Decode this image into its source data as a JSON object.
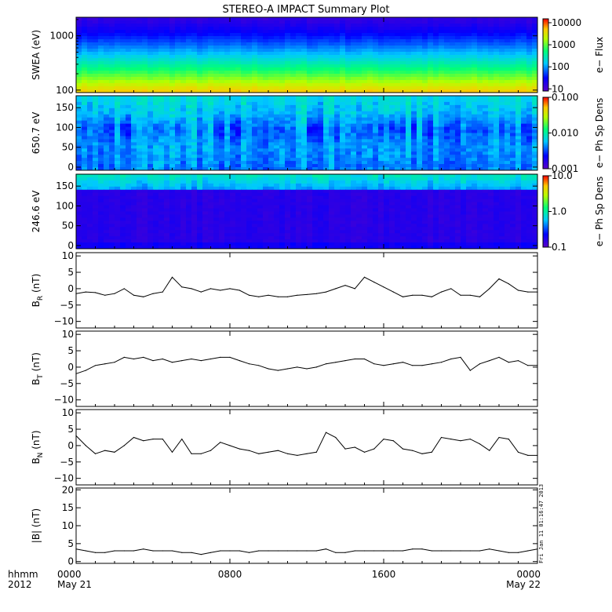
{
  "title": "STEREO-A IMPACT Summary Plot",
  "x_axis": {
    "corner_labels": [
      "hhmm",
      "2012"
    ],
    "ticks": [
      {
        "label": "0000",
        "sub": "May 21",
        "hour": 0
      },
      {
        "label": "0800",
        "sub": "",
        "hour": 8
      },
      {
        "label": "1600",
        "sub": "",
        "hour": 16
      },
      {
        "label": "0000",
        "sub": "May 22",
        "hour": 24
      }
    ]
  },
  "timestamp": "Fri Jan 11 01:16:47 2013",
  "colors": {
    "axis": "#000000",
    "line": "#000000",
    "background": "#ffffff"
  },
  "chart_data": [
    {
      "type": "heatmap",
      "id": "swea",
      "ylabel": "SWEA (eV)",
      "yscale": "log",
      "ylim": [
        90,
        2200
      ],
      "yticks": [
        100,
        1000
      ],
      "ytick_labels": [
        "100",
        "1000"
      ],
      "colorbar": {
        "label": "e− Flux",
        "scale": "log",
        "range": [
          8,
          15000
        ],
        "ticks": [
          10,
          100,
          1000,
          10000
        ],
        "tick_labels": [
          "10",
          "100",
          "1000",
          "10000"
        ]
      },
      "description_profile": [
        {
          "energy": 100,
          "flux": 1600
        },
        {
          "energy": 200,
          "flux": 800
        },
        {
          "energy": 300,
          "flux": 350
        },
        {
          "energy": 500,
          "flux": 150
        },
        {
          "energy": 800,
          "flux": 40
        },
        {
          "energy": 1200,
          "flux": 14
        },
        {
          "energy": 2000,
          "flux": 8
        }
      ]
    },
    {
      "type": "heatmap",
      "id": "pad650",
      "ylabel": "650.7 eV",
      "ylim": [
        -8,
        180
      ],
      "yticks": [
        0,
        50,
        100,
        150
      ],
      "ytick_labels": [
        "0",
        "50",
        "100",
        "150"
      ],
      "colorbar": {
        "label": "e− Ph Sp Dens",
        "scale": "log",
        "range": [
          0.001,
          0.1
        ],
        "ticks": [
          0.001,
          0.01,
          0.1
        ],
        "tick_labels": [
          "0.001",
          "0.010",
          "0.100"
        ]
      }
    },
    {
      "type": "heatmap",
      "id": "pad246",
      "ylabel": "246.6 eV",
      "ylim": [
        -8,
        180
      ],
      "yticks": [
        0,
        50,
        100,
        150
      ],
      "ytick_labels": [
        "0",
        "50",
        "100",
        "150"
      ],
      "colorbar": {
        "label": "e− Ph Sp Dens",
        "scale": "log",
        "range": [
          0.1,
          10
        ],
        "ticks": [
          0.1,
          1,
          10
        ],
        "tick_labels": [
          "0.1",
          "1.0",
          "10.0"
        ]
      }
    },
    {
      "type": "line",
      "id": "br",
      "ylabel": "B",
      "ylabel_sub": "R",
      "ylabel_unit": " (nT)",
      "ylim": [
        -12,
        11
      ],
      "yticks": [
        -10,
        -5,
        0,
        5,
        10
      ],
      "ytick_labels": [
        "−10",
        "−5",
        "0",
        "5",
        "10"
      ],
      "x_hours": [
        0,
        0.5,
        1,
        1.5,
        2,
        2.5,
        3,
        3.5,
        4,
        4.5,
        5,
        5.5,
        6,
        6.5,
        7,
        7.5,
        8,
        8.5,
        9,
        9.5,
        10,
        10.5,
        11,
        11.5,
        12,
        12.5,
        13,
        13.5,
        14,
        14.5,
        15,
        15.5,
        16,
        16.5,
        17,
        17.5,
        18,
        18.5,
        19,
        19.5,
        20,
        20.5,
        21,
        21.5,
        22,
        22.5,
        23,
        23.5,
        24
      ],
      "values": [
        -1.5,
        -1,
        -1.2,
        -2,
        -1.5,
        0,
        -2,
        -2.5,
        -1.5,
        -1,
        3.5,
        0.5,
        0,
        -1,
        0,
        -0.5,
        0,
        -0.5,
        -2,
        -2.5,
        -2,
        -2.5,
        -2.5,
        -2,
        -1.8,
        -1.5,
        -1,
        0,
        1,
        0,
        3.5,
        2,
        0.5,
        -1,
        -2.5,
        -2,
        -2,
        -2.5,
        -1,
        0,
        -2,
        -2,
        -2.5,
        0,
        3,
        1.5,
        -0.5,
        -1,
        -1
      ]
    },
    {
      "type": "line",
      "id": "bt",
      "ylabel": "B",
      "ylabel_sub": "T",
      "ylabel_unit": " (nT)",
      "ylim": [
        -12,
        11
      ],
      "yticks": [
        -10,
        -5,
        0,
        5,
        10
      ],
      "ytick_labels": [
        "−10",
        "−5",
        "0",
        "5",
        "10"
      ],
      "x_hours": [
        0,
        0.5,
        1,
        1.5,
        2,
        2.5,
        3,
        3.5,
        4,
        4.5,
        5,
        5.5,
        6,
        6.5,
        7,
        7.5,
        8,
        8.5,
        9,
        9.5,
        10,
        10.5,
        11,
        11.5,
        12,
        12.5,
        13,
        13.5,
        14,
        14.5,
        15,
        15.5,
        16,
        16.5,
        17,
        17.5,
        18,
        18.5,
        19,
        19.5,
        20,
        20.5,
        21,
        21.5,
        22,
        22.5,
        23,
        23.5,
        24
      ],
      "values": [
        -2,
        -1,
        0.5,
        1,
        1.5,
        3,
        2.5,
        3,
        2,
        2.5,
        1.5,
        2,
        2.5,
        2,
        2.5,
        3,
        3,
        2,
        1,
        0.5,
        -0.5,
        -1,
        -0.5,
        0,
        -0.5,
        0,
        1,
        1.5,
        2,
        2.5,
        2.5,
        1,
        0.5,
        1,
        1.5,
        0.5,
        0.5,
        1,
        1.5,
        2.5,
        3,
        -1,
        1,
        2,
        3,
        1.5,
        2,
        0.5,
        0.5
      ]
    },
    {
      "type": "line",
      "id": "bn",
      "ylabel": "B",
      "ylabel_sub": "N",
      "ylabel_unit": " (nT)",
      "ylim": [
        -12,
        11
      ],
      "yticks": [
        -10,
        -5,
        0,
        5,
        10
      ],
      "ytick_labels": [
        "−10",
        "−5",
        "0",
        "5",
        "10"
      ],
      "x_hours": [
        0,
        0.5,
        1,
        1.5,
        2,
        2.5,
        3,
        3.5,
        4,
        4.5,
        5,
        5.5,
        6,
        6.5,
        7,
        7.5,
        8,
        8.5,
        9,
        9.5,
        10,
        10.5,
        11,
        11.5,
        12,
        12.5,
        13,
        13.5,
        14,
        14.5,
        15,
        15.5,
        16,
        16.5,
        17,
        17.5,
        18,
        18.5,
        19,
        19.5,
        20,
        20.5,
        21,
        21.5,
        22,
        22.5,
        23,
        23.5,
        24
      ],
      "values": [
        3,
        0,
        -2.5,
        -1.5,
        -2,
        0,
        2.5,
        1.5,
        2,
        2,
        -2,
        2,
        -2.5,
        -2.5,
        -1.5,
        1,
        0,
        -1,
        -1.5,
        -2.5,
        -2,
        -1.5,
        -2.5,
        -3,
        -2.5,
        -2,
        4,
        2.5,
        -1,
        -0.5,
        -2,
        -1,
        2,
        1.5,
        -1,
        -1.5,
        -2.5,
        -2,
        2.5,
        2,
        1.5,
        2,
        0.5,
        -1.5,
        2.5,
        2,
        -2,
        -3,
        -3
      ]
    },
    {
      "type": "line",
      "id": "bmag",
      "ylabel": "|B| (nT)",
      "ylim": [
        -0.5,
        20.5
      ],
      "yticks": [
        0,
        5,
        10,
        15,
        20
      ],
      "ytick_labels": [
        "0",
        "5",
        "10",
        "15",
        "20"
      ],
      "x_hours": [
        0,
        0.5,
        1,
        1.5,
        2,
        2.5,
        3,
        3.5,
        4,
        4.5,
        5,
        5.5,
        6,
        6.5,
        7,
        7.5,
        8,
        8.5,
        9,
        9.5,
        10,
        10.5,
        11,
        11.5,
        12,
        12.5,
        13,
        13.5,
        14,
        14.5,
        15,
        15.5,
        16,
        16.5,
        17,
        17.5,
        18,
        18.5,
        19,
        19.5,
        20,
        20.5,
        21,
        21.5,
        22,
        22.5,
        23,
        23.5,
        24
      ],
      "values": [
        3.5,
        3,
        2.5,
        2.5,
        3,
        3,
        3,
        3.5,
        3,
        3,
        3,
        2.5,
        2.5,
        2,
        2.5,
        3,
        3,
        3,
        2.5,
        3,
        3,
        3,
        3,
        3,
        3,
        3,
        3.5,
        2.5,
        2.5,
        3,
        3,
        3,
        3,
        3,
        3,
        3.5,
        3.5,
        3,
        3,
        3,
        3,
        3,
        3,
        3.5,
        3,
        2.5,
        2.5,
        3,
        3.5
      ]
    }
  ]
}
